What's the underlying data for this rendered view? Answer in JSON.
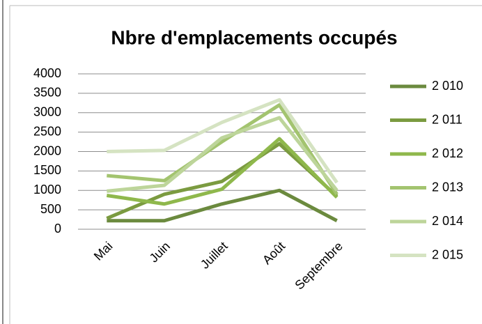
{
  "chart_data": {
    "type": "line",
    "title": "Nbre d'emplacements occupés",
    "categories": [
      "Mai",
      "Juin",
      "Juillet",
      "Août",
      "Septembre"
    ],
    "series": [
      {
        "name": "2 010",
        "color": "#6b8a3e",
        "values": [
          220,
          220,
          650,
          1000,
          220
        ]
      },
      {
        "name": "2 011",
        "color": "#7b9b40",
        "values": [
          280,
          900,
          1230,
          2200,
          850
        ]
      },
      {
        "name": "2 012",
        "color": "#8fb84c",
        "values": [
          870,
          650,
          1030,
          2330,
          820
        ]
      },
      {
        "name": "2 013",
        "color": "#a3c46f",
        "values": [
          1380,
          1250,
          2250,
          3200,
          900
        ]
      },
      {
        "name": "2 014",
        "color": "#bdd59a",
        "values": [
          980,
          1130,
          2350,
          2870,
          1000
        ]
      },
      {
        "name": "2 015",
        "color": "#d5e3c2",
        "values": [
          2000,
          2030,
          2750,
          3330,
          1200
        ]
      }
    ],
    "ylim": [
      0,
      4000
    ],
    "yticks": [
      0,
      500,
      1000,
      1500,
      2000,
      2500,
      3000,
      3500,
      4000
    ],
    "grid": true,
    "legend": "right"
  }
}
